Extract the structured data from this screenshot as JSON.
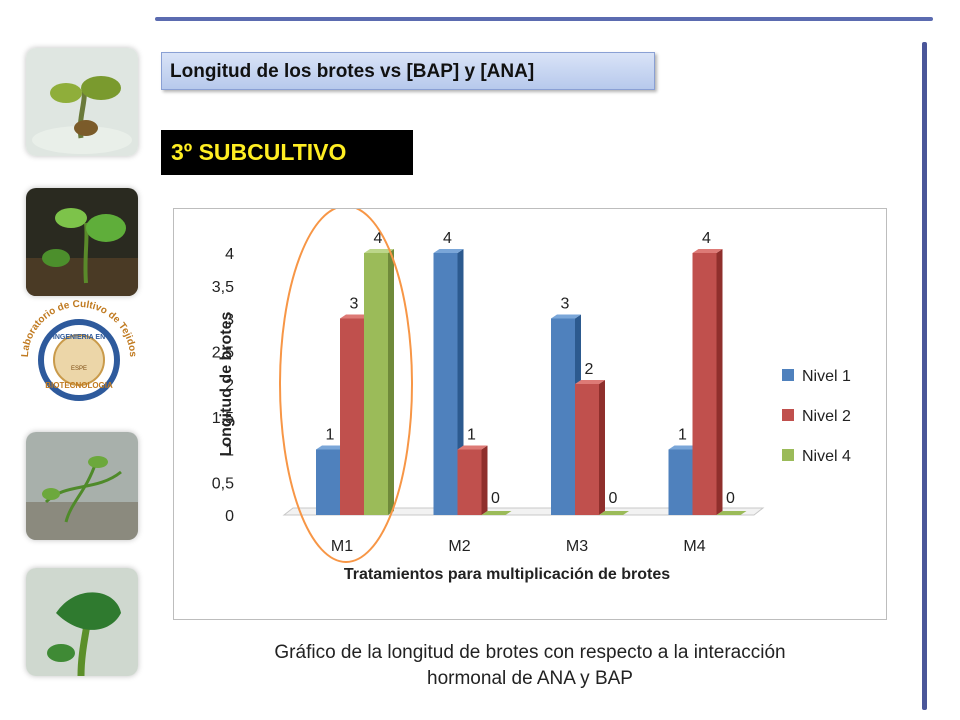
{
  "slide": {
    "title": "Longitud de los brotes vs [BAP] y [ANA]",
    "subtitle": "3º SUBCULTIVO",
    "caption_line1": "Gráfico de la longitud de brotes con respecto a la interacción",
    "caption_line2": "hormonal de ANA y BAP",
    "logo_text_outer": "Laboratorio de Cultivo de Tejidos",
    "logo_text_inner": "INGENIERIA EN",
    "logo_text_bottom": "BIOTECNOLOGIA",
    "logo_text_center": "ESPE"
  },
  "colors": {
    "accent": "#5b6bb0",
    "nivel1": "#4f81bd",
    "nivel2": "#c0504d",
    "nivel4": "#9bbb59",
    "highlight_ellipse": "#f79646"
  },
  "chart_data": {
    "type": "bar",
    "title": "",
    "xlabel": "Tratamientos para multiplicación  de brotes",
    "ylabel": "Longitud de brotes",
    "categories": [
      "M1",
      "M2",
      "M3",
      "M4"
    ],
    "series": [
      {
        "name": "Nivel 1",
        "values": [
          1,
          4,
          3,
          1
        ]
      },
      {
        "name": "Nivel 2",
        "values": [
          3,
          1,
          2,
          4
        ]
      },
      {
        "name": "Nivel 4",
        "values": [
          4,
          0,
          0,
          0
        ]
      }
    ],
    "ylim": [
      0,
      4
    ],
    "yticks": [
      "0",
      "0,5",
      "1",
      "1,5",
      "2",
      "2,5",
      "3",
      "3,5",
      "4"
    ],
    "legend": "right",
    "highlighted_category": "M1",
    "grid": false
  }
}
